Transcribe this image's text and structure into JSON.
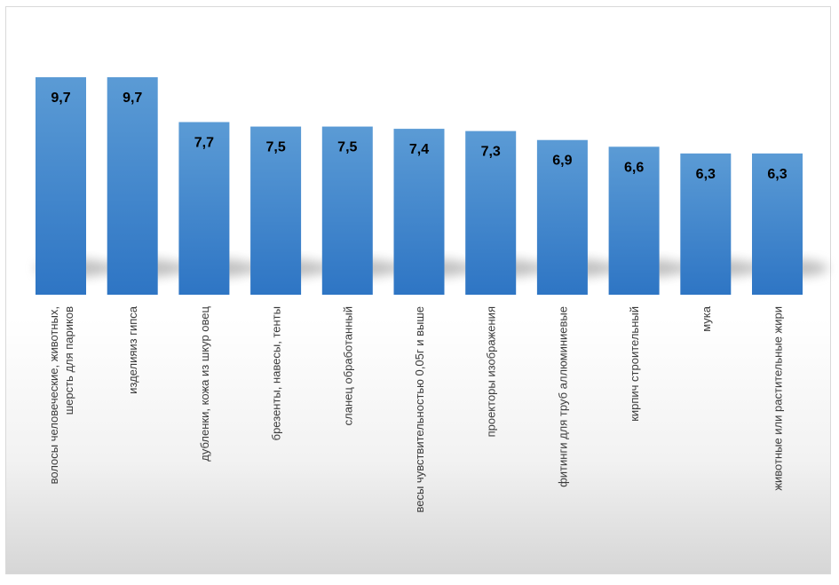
{
  "chart_data": {
    "type": "bar",
    "title": "",
    "xlabel": "",
    "ylabel": "",
    "ylim": [
      0,
      9.7
    ],
    "grid": false,
    "legend": "none",
    "colors": {
      "bar_top": "#5b9bd5",
      "bar_bottom": "#2e75c4",
      "label": "#000000",
      "category": "#3a3a3a"
    },
    "categories": [
      [
        "волосы человеческие, животных,",
        "шерсть для париков"
      ],
      [
        "изделияиз гипса"
      ],
      [
        "дубленки, кожа из шкур овец"
      ],
      [
        "брезенты, навесы, тенты"
      ],
      [
        "сланец обработанный"
      ],
      [
        "весы чувствительностью 0,05г и выше"
      ],
      [
        "проекторы изображения"
      ],
      [
        "фитинги для труб аллюминиевые"
      ],
      [
        "кирпич строительный"
      ],
      [
        "мука"
      ],
      [
        "животные или растительные жири"
      ]
    ],
    "values": [
      9.7,
      9.7,
      7.7,
      7.5,
      7.5,
      7.4,
      7.3,
      6.9,
      6.6,
      6.3,
      6.3
    ],
    "value_labels": [
      "9,7",
      "9,7",
      "7,7",
      "7,5",
      "7,5",
      "7,4",
      "7,3",
      "6,9",
      "6,6",
      "6,3",
      "6,3"
    ]
  }
}
